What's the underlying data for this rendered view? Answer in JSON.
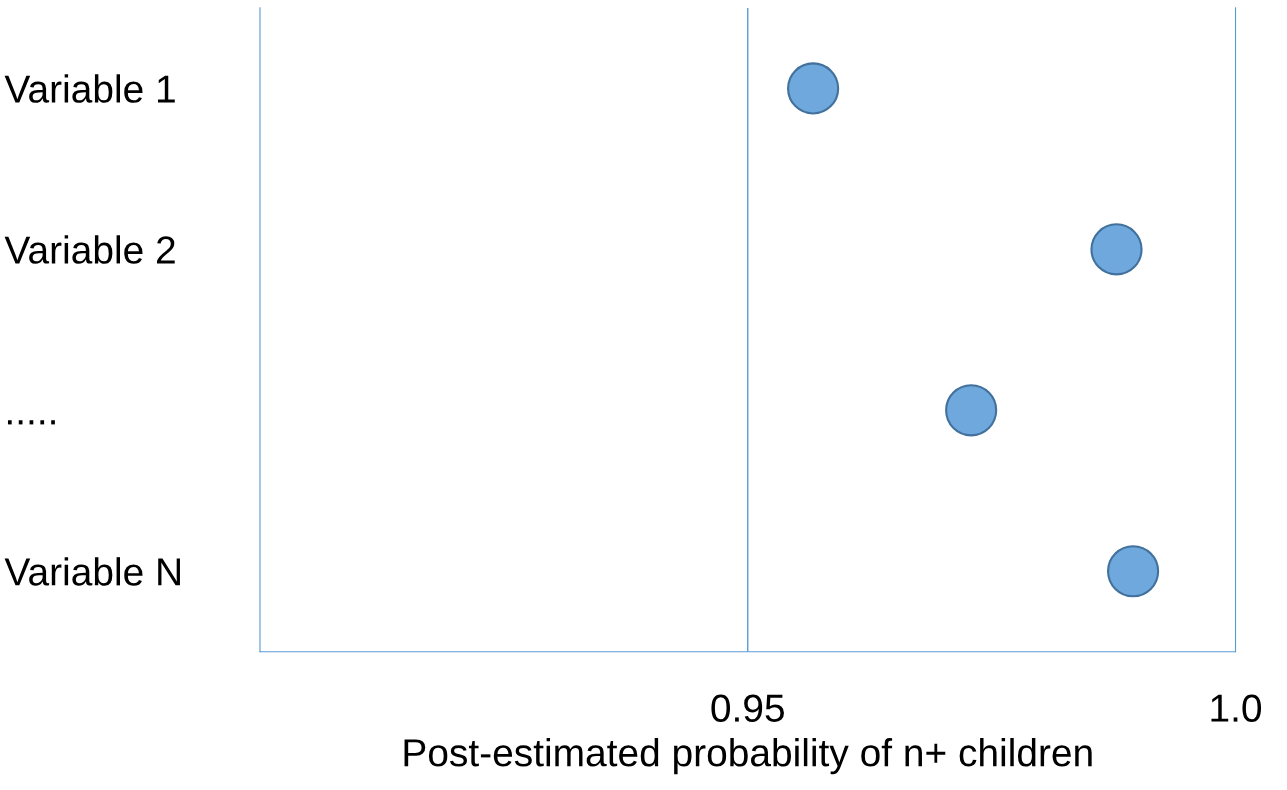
{
  "chart_data": {
    "type": "scatter",
    "orientation": "horizontal",
    "xlabel": "Post-estimated probability of n+ children",
    "categories": [
      "Variable 1",
      "Variable 2",
      ".....",
      "Variable N"
    ],
    "series": [
      {
        "color": "#6fa8dc",
        "values": [
          0.9567,
          0.9878,
          0.9729,
          0.9895
        ]
      }
    ],
    "xlim": [
      0.9,
      1.0
    ],
    "xticks": [
      0.95,
      {
        "value": 1.0,
        "label": "1.0"
      }
    ],
    "ref_lines": [
      {
        "axis": "x",
        "value": 0.95,
        "color": "#5b9bd5"
      }
    ],
    "marker": "circle",
    "legend": false
  }
}
